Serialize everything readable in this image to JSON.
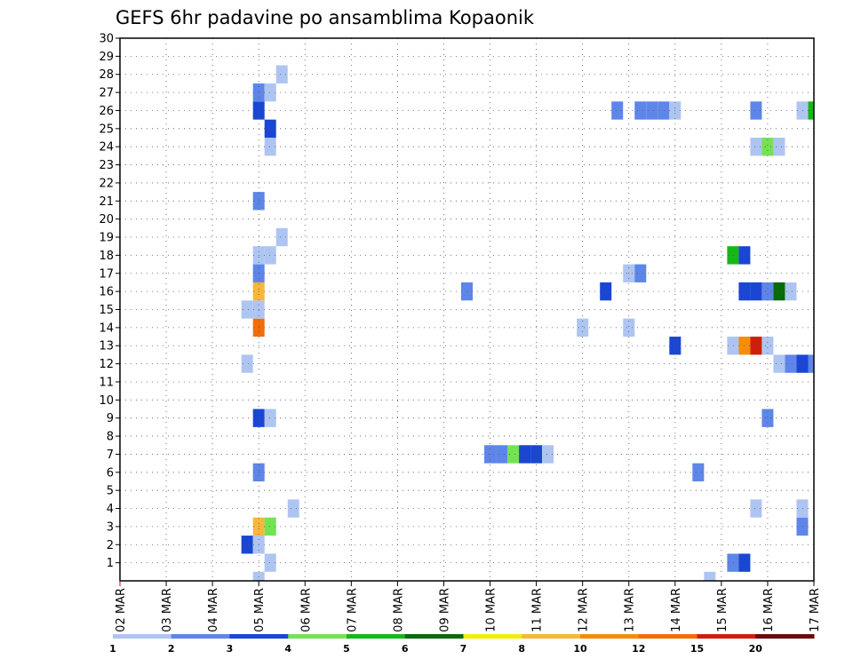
{
  "chart_data": {
    "type": "heatmap",
    "title": "GEFS 6hr padavine po ansamblima Kopaonik",
    "xlabel": "",
    "ylabel": "",
    "x_tick_labels": [
      "02 MAR",
      "03 MAR",
      "04 MAR",
      "05 MAR",
      "06 MAR",
      "07 MAR",
      "08 MAR",
      "09 MAR",
      "10 MAR",
      "11 MAR",
      "12 MAR",
      "13 MAR",
      "14 MAR",
      "15 MAR",
      "16 MAR",
      "17 MAR"
    ],
    "x_range_steps": [
      0,
      60
    ],
    "y_tick_labels": [
      "1",
      "2",
      "3",
      "4",
      "5",
      "6",
      "7",
      "8",
      "9",
      "10",
      "11",
      "12",
      "13",
      "14",
      "15",
      "16",
      "17",
      "18",
      "19",
      "20",
      "21",
      "22",
      "23",
      "24",
      "25",
      "26",
      "27",
      "28",
      "29",
      "30"
    ],
    "ylim": [
      0,
      30
    ],
    "grid": true,
    "legend_position": "bottom",
    "legend": {
      "labels": [
        "1",
        "2",
        "3",
        "4",
        "5",
        "6",
        "7",
        "8",
        "10",
        "12",
        "15",
        "20"
      ],
      "colors": [
        "#aec5f2",
        "#5d86e8",
        "#1a46d4",
        "#73e353",
        "#17b717",
        "#086b08",
        "#f2ee08",
        "#f7b73a",
        "#f58c0a",
        "#f26d0a",
        "#cf1f0a",
        "#6b0a0a"
      ]
    },
    "cells": [
      {
        "member": 0,
        "step": 12,
        "cat": 0
      },
      {
        "member": 0,
        "step": 51,
        "cat": 0
      },
      {
        "member": 1,
        "step": 13,
        "cat": 0
      },
      {
        "member": 1,
        "step": 53,
        "cat": 1
      },
      {
        "member": 1,
        "step": 54,
        "cat": 2
      },
      {
        "member": 2,
        "step": 11,
        "cat": 2
      },
      {
        "member": 2,
        "step": 12,
        "cat": 0
      },
      {
        "member": 3,
        "step": 12,
        "cat": 7
      },
      {
        "member": 3,
        "step": 13,
        "cat": 3
      },
      {
        "member": 3,
        "step": 59,
        "cat": 1
      },
      {
        "member": 4,
        "step": 15,
        "cat": 0
      },
      {
        "member": 4,
        "step": 55,
        "cat": 0
      },
      {
        "member": 4,
        "step": 59,
        "cat": 0
      },
      {
        "member": 6,
        "step": 12,
        "cat": 1
      },
      {
        "member": 6,
        "step": 50,
        "cat": 1
      },
      {
        "member": 7,
        "step": 32,
        "cat": 1
      },
      {
        "member": 7,
        "step": 33,
        "cat": 1
      },
      {
        "member": 7,
        "step": 34,
        "cat": 3
      },
      {
        "member": 7,
        "step": 35,
        "cat": 2
      },
      {
        "member": 7,
        "step": 36,
        "cat": 2
      },
      {
        "member": 7,
        "step": 37,
        "cat": 0
      },
      {
        "member": 9,
        "step": 12,
        "cat": 2
      },
      {
        "member": 9,
        "step": 13,
        "cat": 0
      },
      {
        "member": 9,
        "step": 56,
        "cat": 1
      },
      {
        "member": 12,
        "step": 11,
        "cat": 0
      },
      {
        "member": 12,
        "step": 57,
        "cat": 0
      },
      {
        "member": 12,
        "step": 58,
        "cat": 1
      },
      {
        "member": 12,
        "step": 59,
        "cat": 2
      },
      {
        "member": 12,
        "step": 60,
        "cat": 1
      },
      {
        "member": 13,
        "step": 48,
        "cat": 2
      },
      {
        "member": 13,
        "step": 53,
        "cat": 0
      },
      {
        "member": 13,
        "step": 54,
        "cat": 8
      },
      {
        "member": 13,
        "step": 55,
        "cat": 10
      },
      {
        "member": 13,
        "step": 56,
        "cat": 0
      },
      {
        "member": 14,
        "step": 12,
        "cat": 9
      },
      {
        "member": 14,
        "step": 40,
        "cat": 0
      },
      {
        "member": 14,
        "step": 44,
        "cat": 0
      },
      {
        "member": 15,
        "step": 11,
        "cat": 0
      },
      {
        "member": 15,
        "step": 12,
        "cat": 0
      },
      {
        "member": 16,
        "step": 12,
        "cat": 7
      },
      {
        "member": 16,
        "step": 30,
        "cat": 1
      },
      {
        "member": 16,
        "step": 42,
        "cat": 2
      },
      {
        "member": 16,
        "step": 54,
        "cat": 2
      },
      {
        "member": 16,
        "step": 55,
        "cat": 2
      },
      {
        "member": 16,
        "step": 56,
        "cat": 1
      },
      {
        "member": 16,
        "step": 57,
        "cat": 5
      },
      {
        "member": 16,
        "step": 58,
        "cat": 0
      },
      {
        "member": 17,
        "step": 12,
        "cat": 1
      },
      {
        "member": 17,
        "step": 44,
        "cat": 0
      },
      {
        "member": 17,
        "step": 45,
        "cat": 1
      },
      {
        "member": 18,
        "step": 12,
        "cat": 0
      },
      {
        "member": 18,
        "step": 13,
        "cat": 0
      },
      {
        "member": 18,
        "step": 53,
        "cat": 4
      },
      {
        "member": 18,
        "step": 54,
        "cat": 2
      },
      {
        "member": 19,
        "step": 14,
        "cat": 0
      },
      {
        "member": 21,
        "step": 12,
        "cat": 1
      },
      {
        "member": 24,
        "step": 13,
        "cat": 0
      },
      {
        "member": 24,
        "step": 55,
        "cat": 0
      },
      {
        "member": 24,
        "step": 56,
        "cat": 3
      },
      {
        "member": 24,
        "step": 57,
        "cat": 0
      },
      {
        "member": 25,
        "step": 13,
        "cat": 2
      },
      {
        "member": 26,
        "step": 12,
        "cat": 2
      },
      {
        "member": 26,
        "step": 43,
        "cat": 1
      },
      {
        "member": 26,
        "step": 45,
        "cat": 1
      },
      {
        "member": 26,
        "step": 46,
        "cat": 1
      },
      {
        "member": 26,
        "step": 47,
        "cat": 1
      },
      {
        "member": 26,
        "step": 48,
        "cat": 0
      },
      {
        "member": 26,
        "step": 55,
        "cat": 1
      },
      {
        "member": 26,
        "step": 59,
        "cat": 0
      },
      {
        "member": 26,
        "step": 60,
        "cat": 4
      },
      {
        "member": 27,
        "step": 12,
        "cat": 1
      },
      {
        "member": 27,
        "step": 13,
        "cat": 0
      },
      {
        "member": 28,
        "step": 14,
        "cat": 0
      }
    ]
  }
}
